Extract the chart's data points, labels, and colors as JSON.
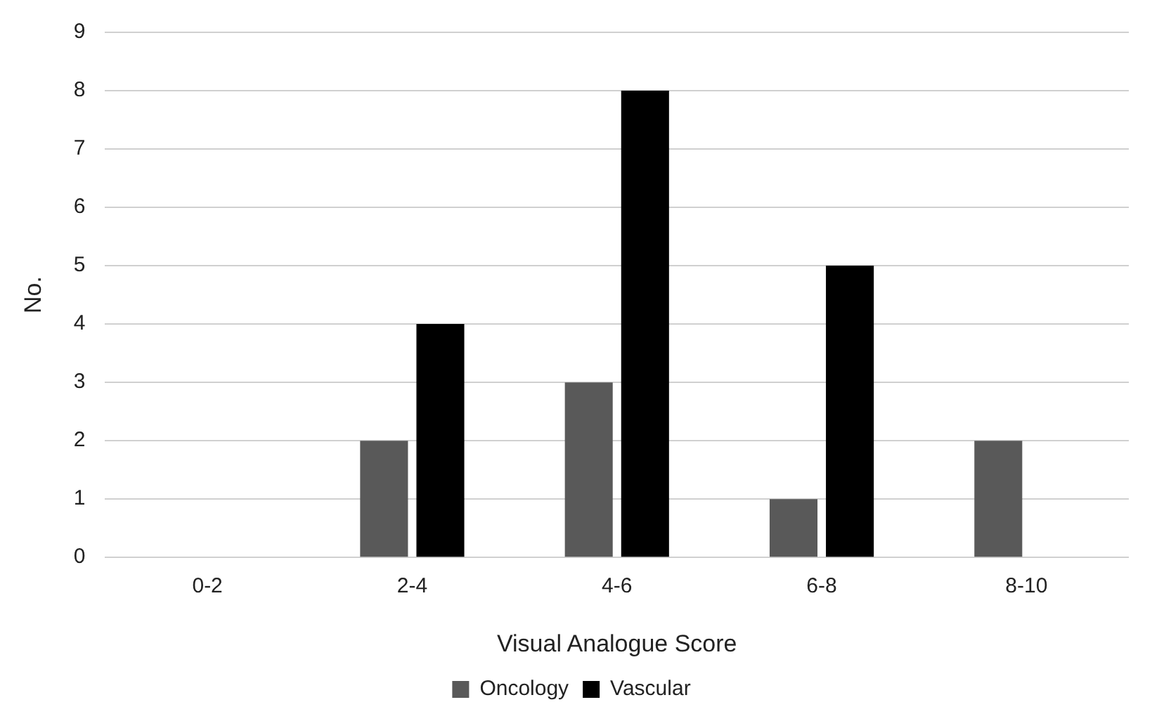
{
  "chart_data": {
    "type": "bar",
    "xlabel": "Visual Analogue Score",
    "ylabel": "No.",
    "categories": [
      "0-2",
      "2-4",
      "4-6",
      "6-8",
      "8-10"
    ],
    "series": [
      {
        "name": "Oncology",
        "color": "#595959",
        "values": [
          0,
          2,
          3,
          1,
          2
        ]
      },
      {
        "name": "Vascular",
        "color": "#000000",
        "values": [
          0,
          4,
          8,
          5,
          0
        ]
      }
    ],
    "ylim": [
      0,
      9
    ],
    "yticks": [
      0,
      1,
      2,
      3,
      4,
      5,
      6,
      7,
      8,
      9
    ],
    "grid": "y",
    "legend": "bottom"
  }
}
